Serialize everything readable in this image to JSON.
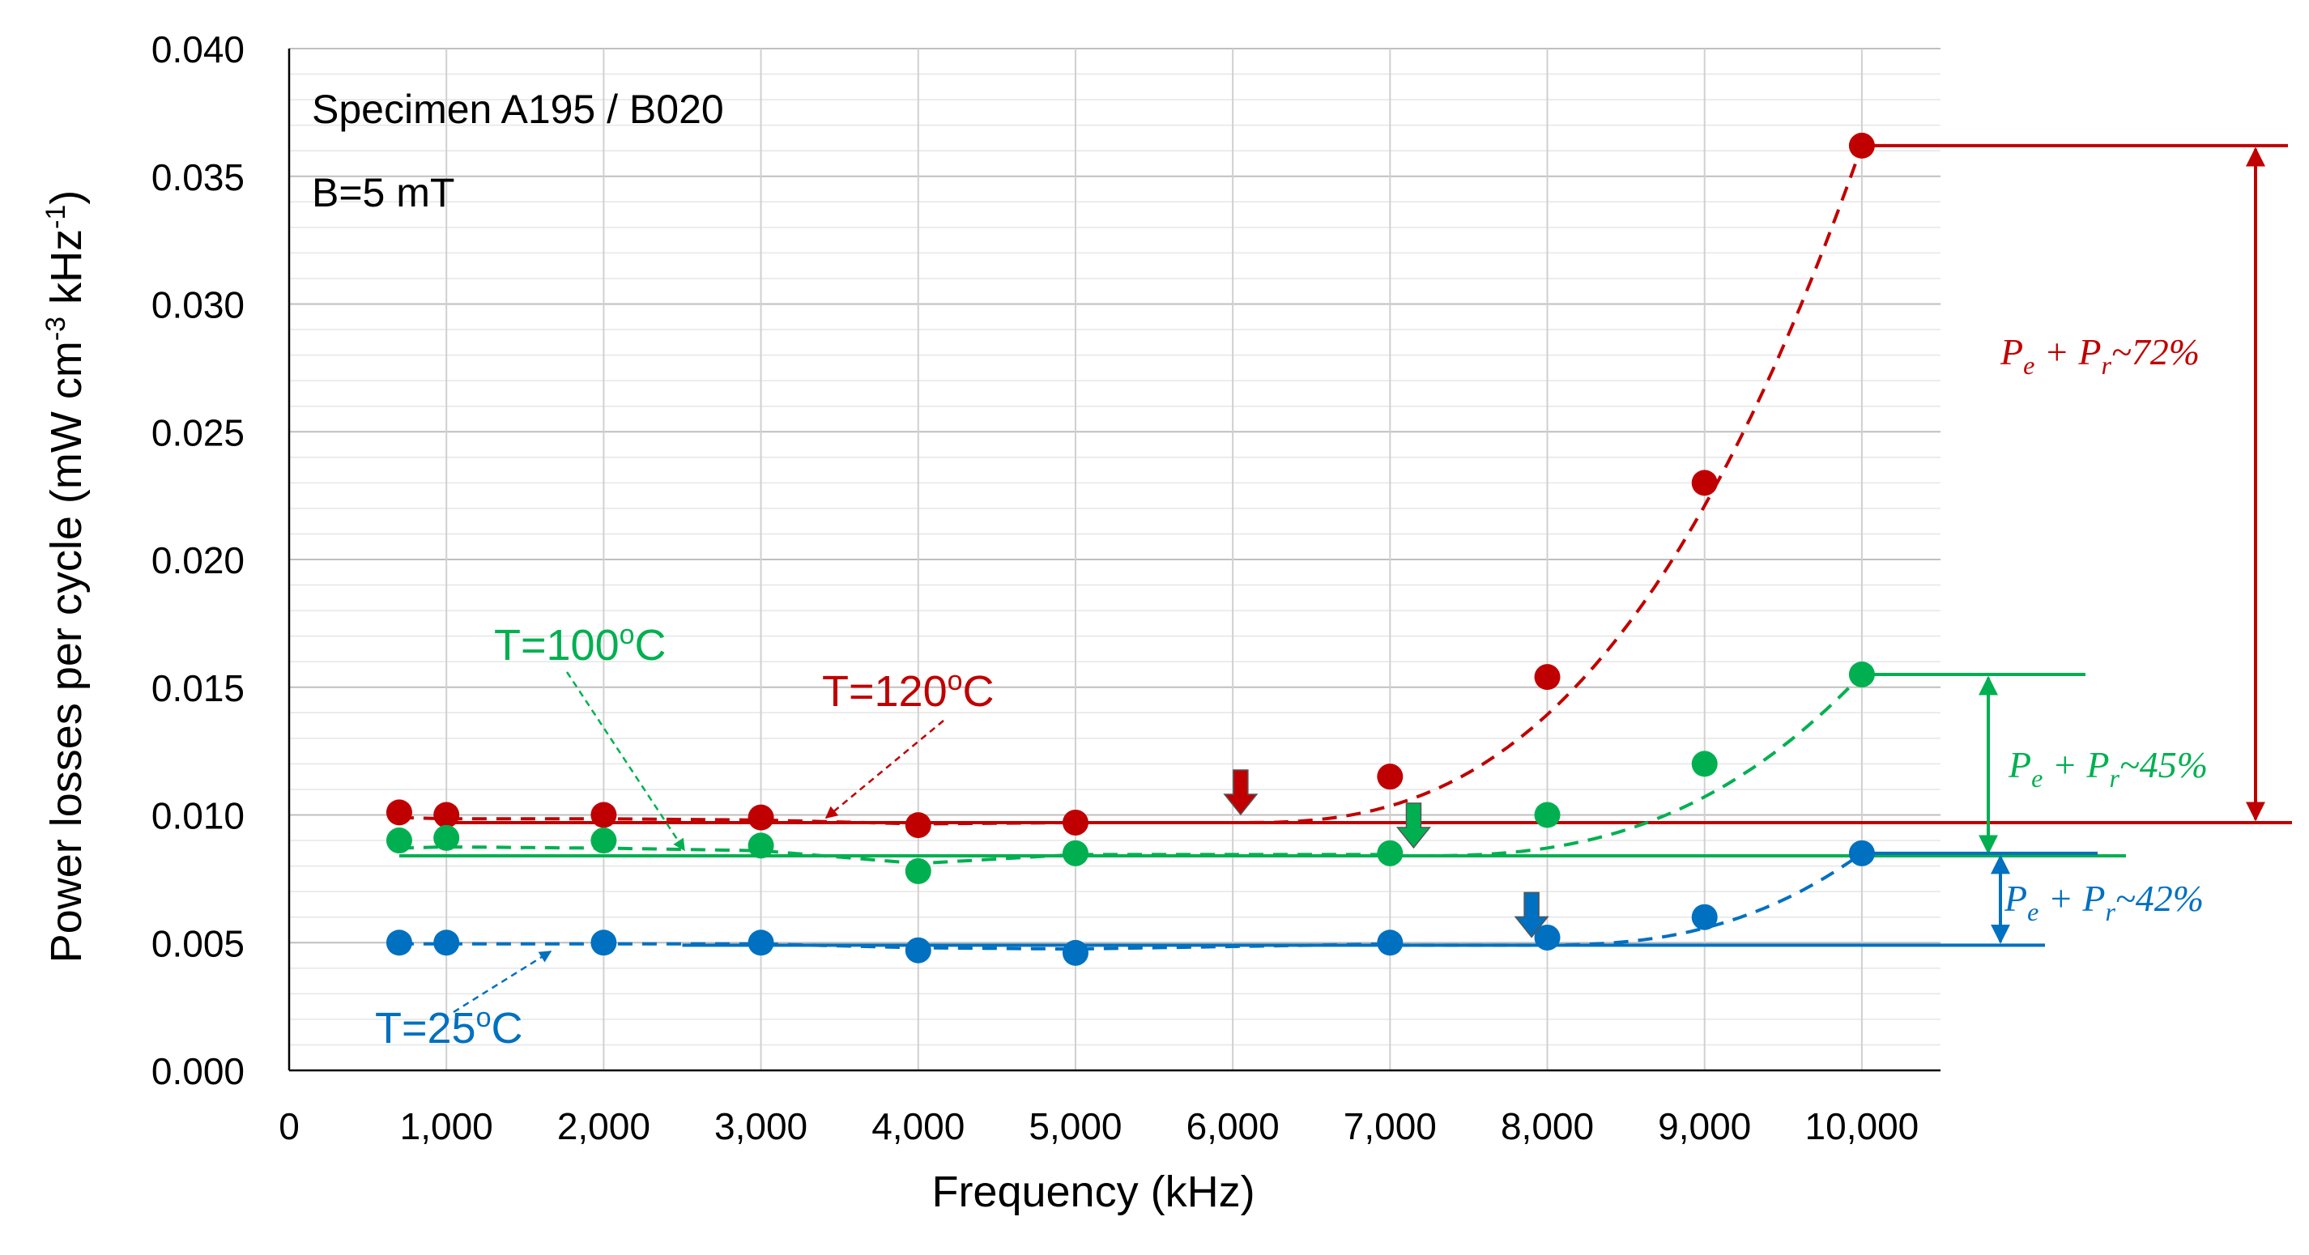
{
  "chart_data": {
    "type": "scatter",
    "title": "",
    "xlabel": "Frequency (kHz)",
    "ylabel_parts": {
      "main": "Power losses per cycle (mW cm",
      "sup1": "-3",
      "mid": " kHz",
      "sup2": "-1",
      "end": ")"
    },
    "xlim": [
      0,
      10500
    ],
    "ylim": [
      0,
      0.04
    ],
    "xticks": [
      0,
      1000,
      2000,
      3000,
      4000,
      5000,
      6000,
      7000,
      8000,
      9000,
      10000
    ],
    "xtick_labels": [
      "0",
      "1,000",
      "2,000",
      "3,000",
      "4,000",
      "5,000",
      "6,000",
      "7,000",
      "8,000",
      "9,000",
      "10,000"
    ],
    "yticks": [
      0,
      0.005,
      0.01,
      0.015,
      0.02,
      0.025,
      0.03,
      0.035,
      0.04
    ],
    "ytick_labels": [
      "0.000",
      "0.005",
      "0.010",
      "0.015",
      "0.020",
      "0.025",
      "0.030",
      "0.035",
      "0.040"
    ],
    "grid": true,
    "annotations": {
      "specimen": "Specimen A195 / B020",
      "field": "B=5 mT"
    },
    "series": [
      {
        "name": "T=120°C",
        "label_main": "T=120",
        "label_sup": "o",
        "label_end": "C",
        "color": "#c00000",
        "x": [
          700,
          1000,
          2000,
          3000,
          4000,
          5000,
          7000,
          8000,
          9000,
          10000
        ],
        "y": [
          0.0101,
          0.01,
          0.01,
          0.0099,
          0.0096,
          0.0097,
          0.0115,
          0.0154,
          0.023,
          0.0362
        ],
        "baseline": 0.0097,
        "onset_arrow_x": 6050,
        "bracket_top": 0.0362,
        "increase": "P_e + P_r~72%",
        "increase_text": "~72%"
      },
      {
        "name": "T=100°C",
        "label_main": "T=100",
        "label_sup": "o",
        "label_end": "C",
        "color": "#00b050",
        "x": [
          700,
          1000,
          2000,
          3000,
          4000,
          5000,
          7000,
          8000,
          9000,
          10000
        ],
        "y": [
          0.009,
          0.0091,
          0.009,
          0.0088,
          0.0078,
          0.0085,
          0.0085,
          0.01,
          0.012,
          0.0155
        ],
        "baseline": 0.0084,
        "onset_arrow_x": 7150,
        "bracket_top": 0.0155,
        "increase": "P_e + P_r~45%",
        "increase_text": "~45%"
      },
      {
        "name": "T=25°C",
        "label_main": "T=25",
        "label_sup": "o",
        "label_end": "C",
        "color": "#0070c0",
        "x": [
          700,
          1000,
          2000,
          3000,
          4000,
          5000,
          7000,
          8000,
          9000,
          10000
        ],
        "y": [
          0.005,
          0.005,
          0.005,
          0.005,
          0.0047,
          0.0046,
          0.005,
          0.0052,
          0.006,
          0.0085
        ],
        "baseline": 0.0049,
        "onset_arrow_x": 7900,
        "bracket_top": 0.0085,
        "increase": "P_e + P_r~42%",
        "increase_text": "~42%"
      }
    ]
  }
}
